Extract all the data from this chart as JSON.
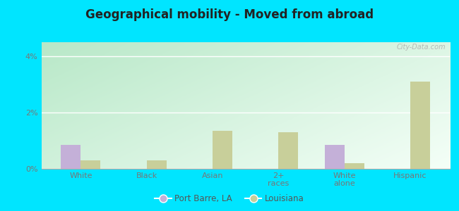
{
  "title": "Geographical mobility - Moved from abroad",
  "categories": [
    "White",
    "Black",
    "Asian",
    "2+\nraces",
    "White\nalone",
    "Hispanic"
  ],
  "port_barre": [
    0.85,
    0.0,
    0.0,
    0.0,
    0.85,
    0.0
  ],
  "louisiana": [
    0.3,
    0.3,
    1.35,
    1.3,
    0.2,
    3.1
  ],
  "port_barre_color": "#c4b0d8",
  "louisiana_color": "#c8cf9a",
  "ylim": [
    0,
    4.5
  ],
  "yticks": [
    0,
    2,
    4
  ],
  "ytick_labels": [
    "0%",
    "2%",
    "4%"
  ],
  "outer_bg": "#00e5ff",
  "plot_bg_left": "#b8e8c8",
  "plot_bg_right": "#f0f8f0",
  "bar_width": 0.3,
  "legend_port_barre": "Port Barre, LA",
  "legend_louisiana": "Louisiana",
  "title_color": "#222222",
  "tick_color": "#777777",
  "watermark": "City-Data.com"
}
